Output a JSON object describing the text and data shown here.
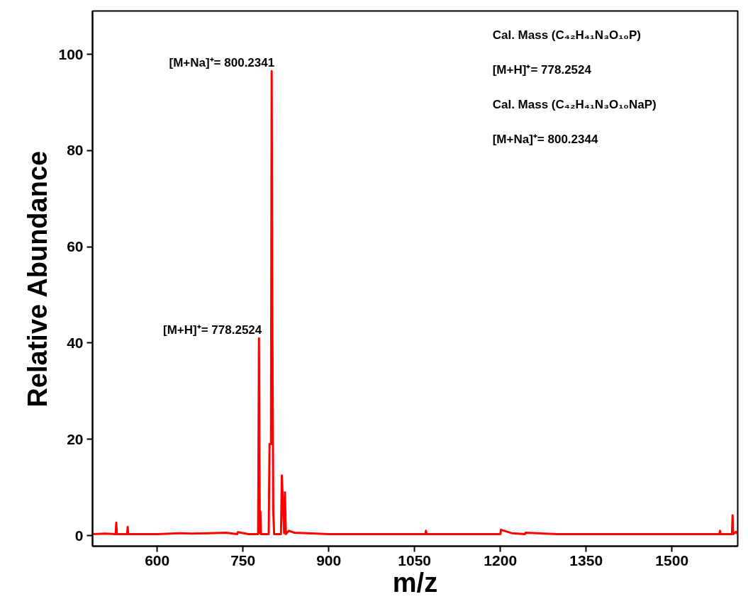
{
  "chart_data": {
    "type": "line",
    "xlabel": "m/z",
    "ylabel": "Relative Abundance",
    "xlim": [
      487,
      1615
    ],
    "ylim": [
      -2.2,
      109
    ],
    "xticks": [
      600,
      750,
      900,
      1050,
      1200,
      1350,
      1500
    ],
    "yticks": [
      0,
      20,
      40,
      60,
      80,
      100
    ],
    "series": [
      {
        "color": "#ff0000",
        "x": [
          487,
          510,
          527.5,
          528.5,
          529.5,
          547.5,
          548.5,
          549.5,
          600,
          640,
          660,
          690,
          720,
          740,
          741,
          760,
          776.5,
          778,
          779.5,
          780.5,
          781.5,
          795,
          796.5,
          799,
          800.2,
          801.5,
          803,
          804.5,
          816.5,
          818,
          822,
          823.5,
          825,
          830,
          840,
          900,
          1000,
          1069,
          1070,
          1071,
          1150,
          1200,
          1201,
          1220,
          1243,
          1244,
          1300,
          1400,
          1500,
          1583,
          1584,
          1585,
          1605,
          1606,
          1607,
          1612,
          1615
        ],
        "values": [
          0.3,
          0.4,
          0.3,
          2.7,
          0.3,
          0.3,
          1.8,
          0.3,
          0.3,
          0.5,
          0.4,
          0.5,
          0.6,
          0.3,
          0.7,
          0.3,
          0.3,
          41,
          0.5,
          5,
          0.3,
          0.3,
          19,
          19,
          96.5,
          42,
          5,
          0.3,
          0.3,
          12.5,
          0.5,
          9,
          0.3,
          1,
          0.6,
          0.3,
          0.3,
          0.3,
          1,
          0.3,
          0.3,
          0.3,
          1.2,
          0.5,
          0.3,
          0.6,
          0.3,
          0.3,
          0.3,
          0.3,
          1,
          0.3,
          0.3,
          4.2,
          0.3,
          0.8,
          0.3
        ]
      }
    ],
    "annotations": [
      {
        "text": "[M+Na]⁺= 800.2341",
        "x": 800.2,
        "y": 96.5
      },
      {
        "text": "[M+H]⁺= 778.2524",
        "x": 778,
        "y": 41
      },
      "Cal. Mass (C₄₂H₄₁N₃O₁₀P)",
      "[M+H]⁺= 778.2524",
      "Cal. Mass (C₄₂H₄₁N₃O₁₀NaP)",
      "[M+Na]⁺= 800.2344"
    ]
  }
}
